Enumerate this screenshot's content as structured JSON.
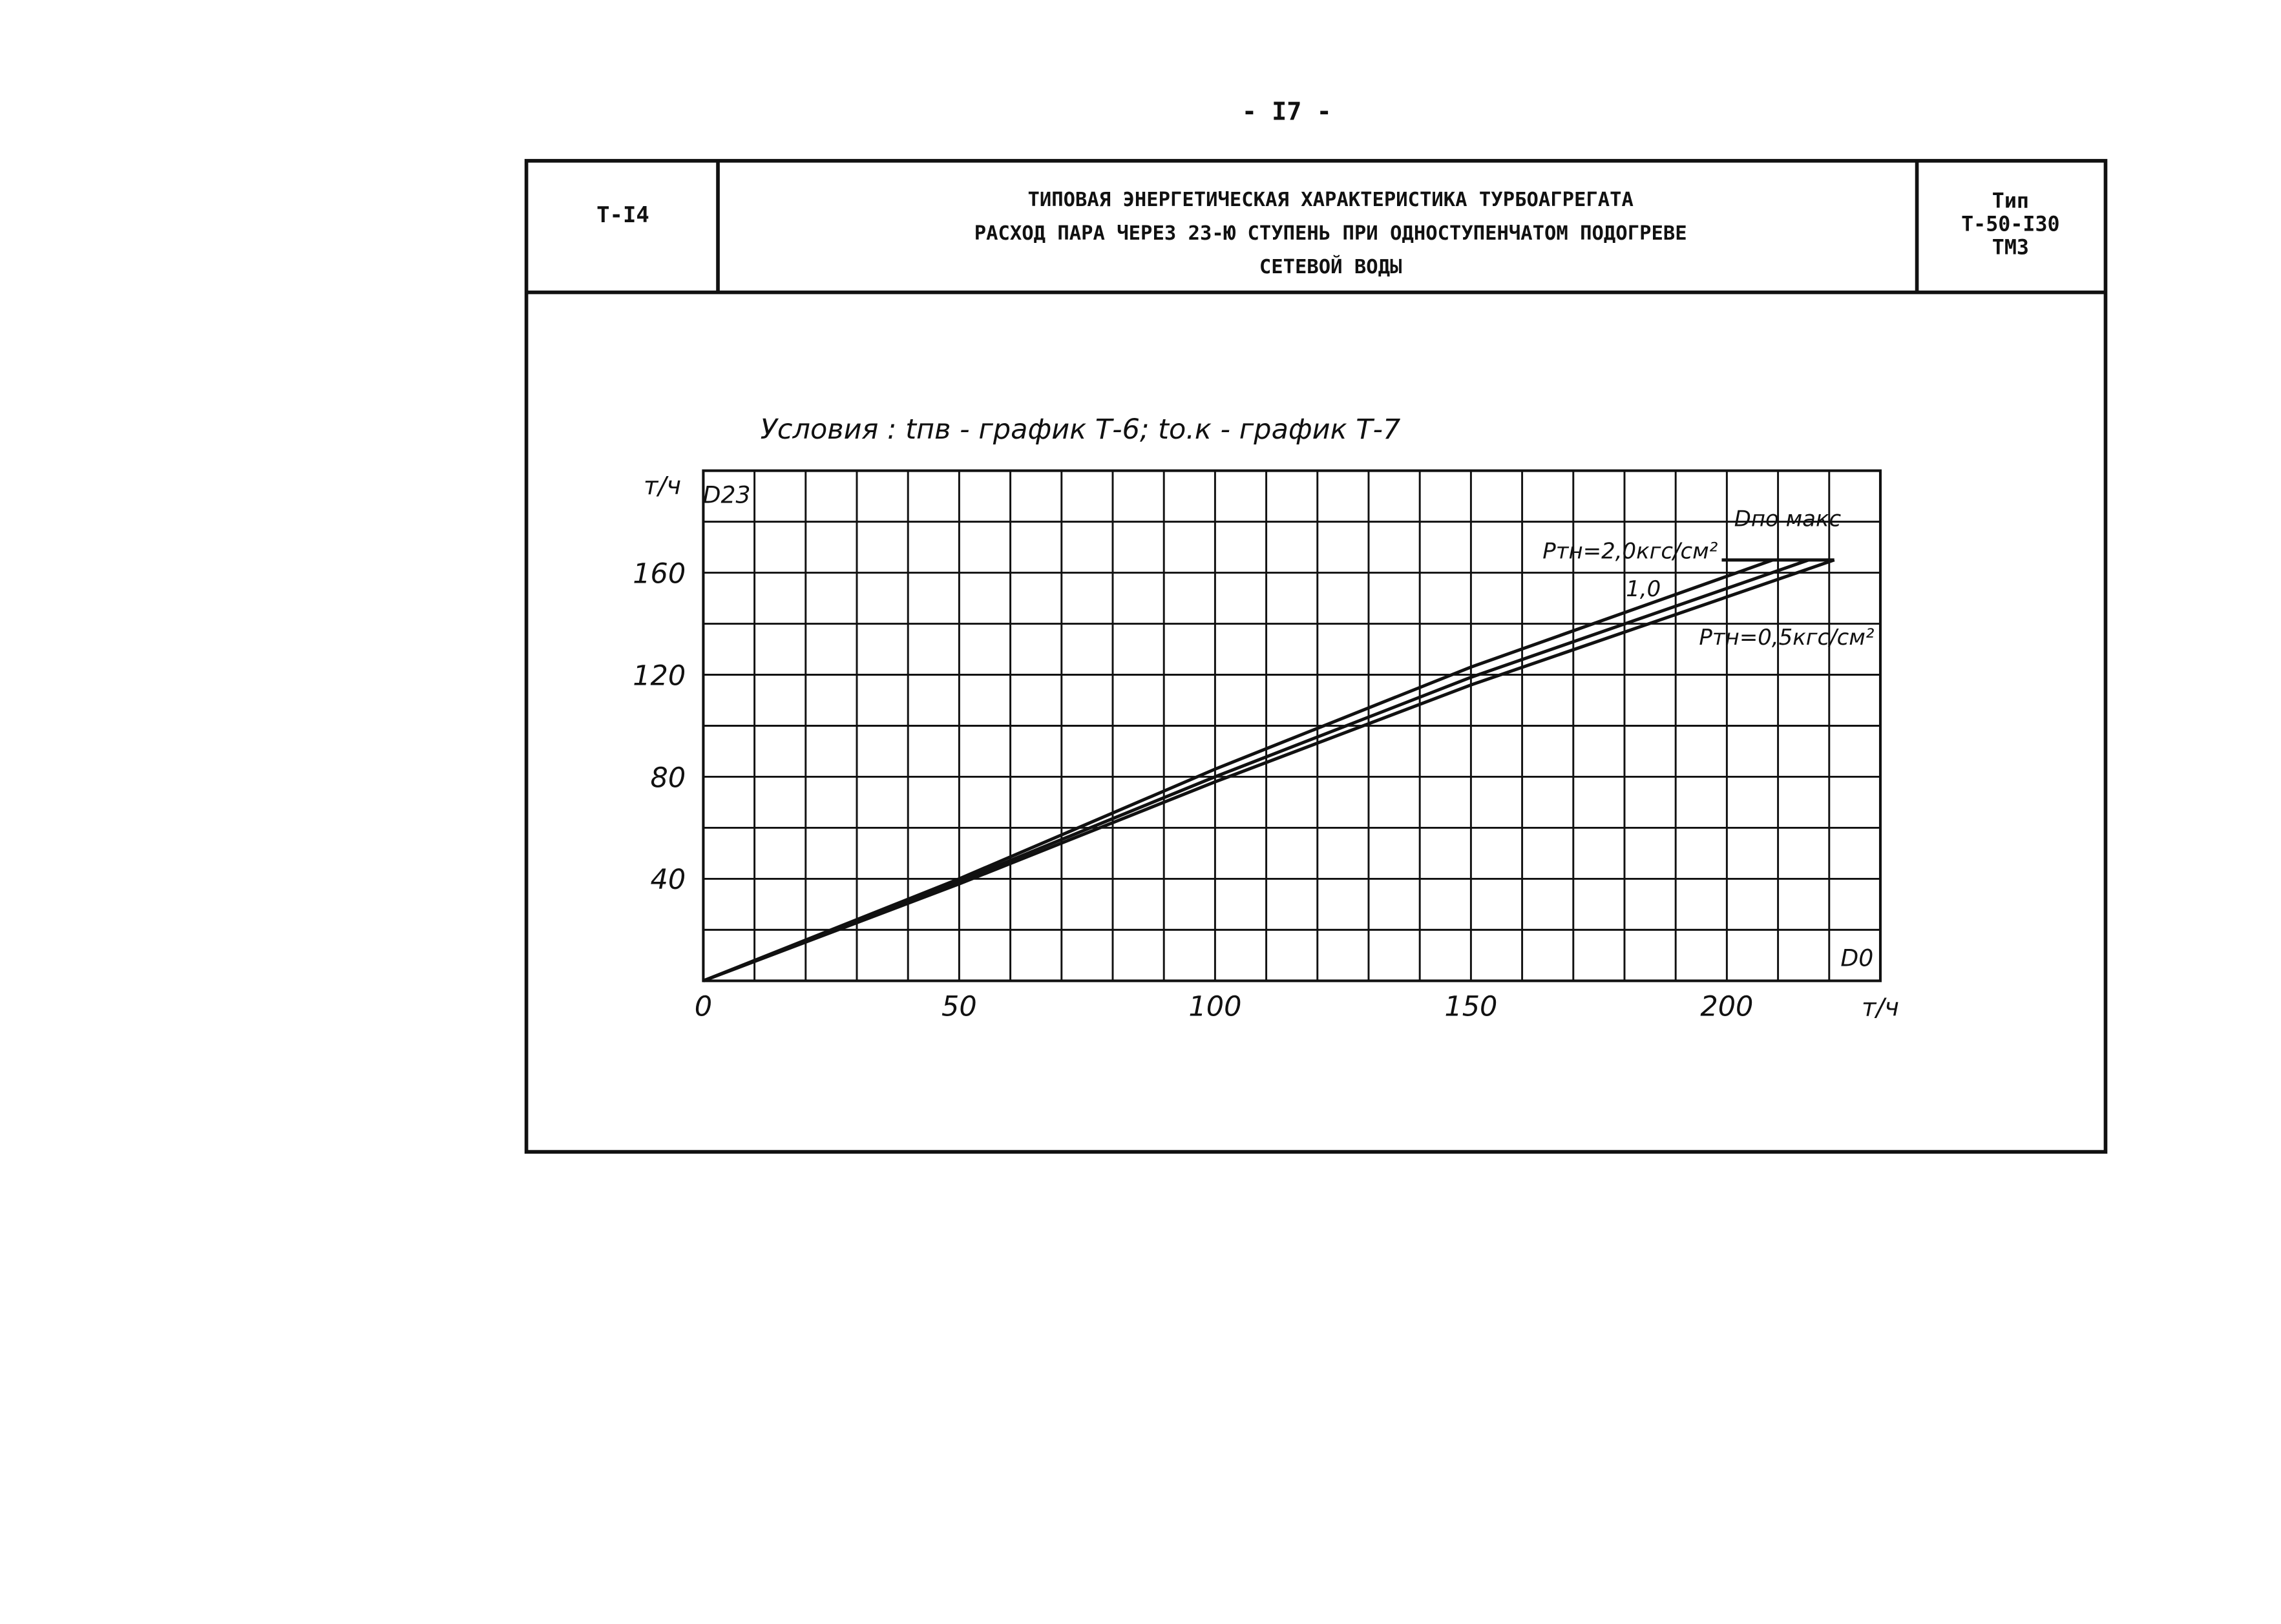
{
  "page_number": "- I7 -",
  "header": {
    "code": "Т-I4",
    "title_lines": [
      "ТИПОВАЯ ЭНЕРГЕТИЧЕСКАЯ ХАРАКТЕРИСТИКА ТУРБОАГРЕГАТА",
      "РАСХОД ПАРА ЧЕРЕЗ 23-Ю СТУПЕНЬ ПРИ ОДНОСТУПЕНЧАТОМ ПОДОГРЕВЕ",
      "СЕТЕВОЙ ВОДЫ"
    ],
    "type_lines": [
      "Тип",
      "Т-50-I30",
      "ТМЗ"
    ]
  },
  "chart_data": {
    "type": "line",
    "subtitle": "Условия : tпв - график Т-6; tо.к - график Т-7",
    "x_label": "D0",
    "x_unit": "т/ч",
    "y_label": "D23",
    "y_unit": "т/ч",
    "xlim": [
      0,
      230
    ],
    "ylim": [
      0,
      200
    ],
    "xticks": [
      0,
      50,
      100,
      150,
      200
    ],
    "yticks": [
      40,
      80,
      120,
      160
    ],
    "minor_xticks": [
      10,
      20,
      30,
      40,
      60,
      70,
      80,
      90,
      110,
      120,
      130,
      140,
      160,
      170,
      180,
      190,
      210,
      220,
      230
    ],
    "minor_yticks": [
      20,
      60,
      100,
      140,
      180,
      200
    ],
    "grid": true,
    "series": [
      {
        "name": "Pтн=2,0кгс/см²",
        "color": "#111111",
        "x": [
          0,
          50,
          100,
          150,
          209
        ],
        "values": [
          0,
          40,
          83,
          123,
          165
        ]
      },
      {
        "name": "1,0",
        "color": "#111111",
        "x": [
          0,
          50,
          100,
          150,
          216
        ],
        "values": [
          0,
          39,
          80,
          119,
          165
        ]
      },
      {
        "name": "Pтн=0,5кгс/см²",
        "color": "#111111",
        "x": [
          0,
          50,
          100,
          150,
          221
        ],
        "values": [
          0,
          38,
          78,
          116,
          165
        ]
      },
      {
        "name": "Dпо макс",
        "color": "#111111",
        "x": [
          199,
          221
        ],
        "values": [
          165,
          165
        ]
      }
    ]
  }
}
